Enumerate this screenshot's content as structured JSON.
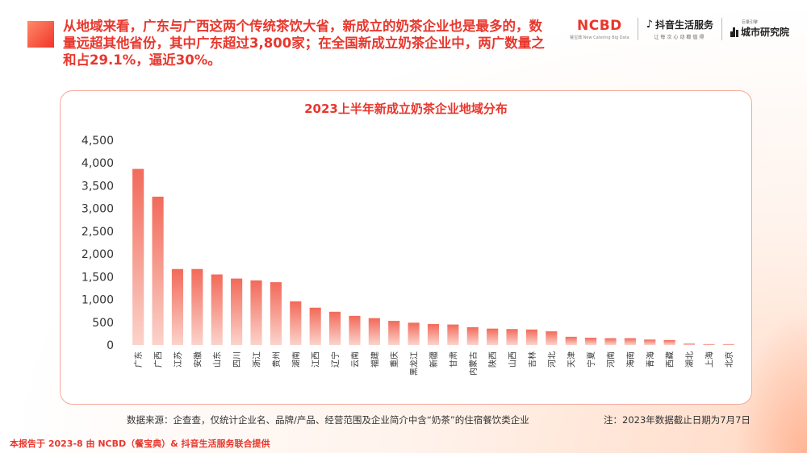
{
  "headline": "从地域来看，广东与广西这两个传统茶饮大省，新成立的奶茶企业也是最多的，数量远超其他省份，其中广东超过3,800家；在全国新成立奶茶企业中，两广数量之和占29.1%，逼近30%。",
  "logos": {
    "ncbd_main": "NCBD",
    "ncbd_sub": "餐宝典 New Catering Big Data",
    "douyin_main": "抖音生活服务",
    "douyin_sub": "让每次心动都值得",
    "city_top": "巨量引擎",
    "city_main": "城市研究院"
  },
  "chart_data": {
    "type": "bar",
    "title": "2023上半年新成立奶茶企业地域分布",
    "categories": [
      "广东",
      "广西",
      "江苏",
      "安徽",
      "山东",
      "四川",
      "浙江",
      "贵州",
      "湖南",
      "江西",
      "辽宁",
      "云南",
      "福建",
      "重庆",
      "黑龙江",
      "新疆",
      "甘肃",
      "内蒙古",
      "陕西",
      "山西",
      "吉林",
      "河北",
      "天津",
      "宁夏",
      "河南",
      "海南",
      "青海",
      "西藏",
      "湖北",
      "上海",
      "北京"
    ],
    "values": [
      3870,
      3260,
      1670,
      1670,
      1550,
      1460,
      1420,
      1380,
      960,
      820,
      730,
      640,
      590,
      530,
      490,
      460,
      450,
      390,
      360,
      350,
      340,
      300,
      180,
      160,
      150,
      150,
      120,
      110,
      30,
      20,
      20
    ],
    "ylim": [
      0,
      4500
    ],
    "yticks": [
      0,
      500,
      1000,
      1500,
      2000,
      2500,
      3000,
      3500,
      4000,
      4500
    ],
    "ytick_labels": [
      "0",
      "500",
      "1,000",
      "1,500",
      "2,000",
      "2,500",
      "3,000",
      "3,500",
      "4,000",
      "4,500"
    ],
    "bar_color_top": "#f26a5a",
    "bar_color_bottom": "#fbd3cb",
    "grid": false
  },
  "source": "数据来源：企查查，仅统计企业名、品牌/产品、经营范围及企业简介中含“奶茶”的住宿餐饮类企业",
  "note": "注：2023年数据截止日期为7月7日",
  "footer": "本报告于 2023-8 由 NCBD（餐宝典）& 抖音生活服务联合提供"
}
